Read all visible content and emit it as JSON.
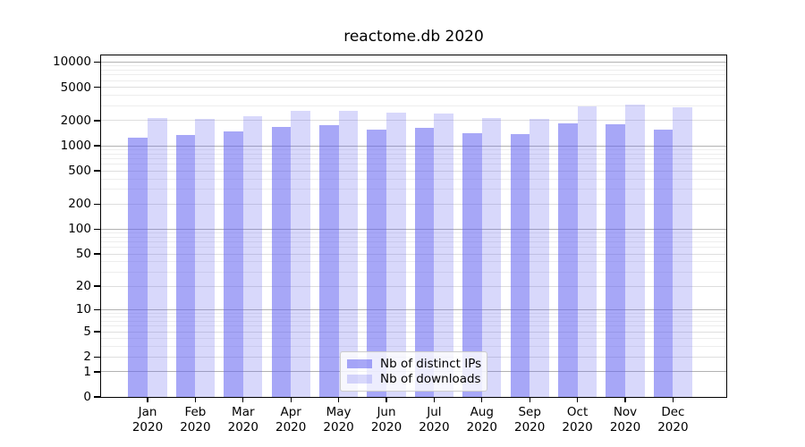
{
  "chart_data": {
    "type": "bar",
    "title": "reactome.db 2020",
    "categories": [
      "Jan 2020",
      "Feb 2020",
      "Mar 2020",
      "Apr 2020",
      "May 2020",
      "Jun 2020",
      "Jul 2020",
      "Aug 2020",
      "Sep 2020",
      "Oct 2020",
      "Nov 2020",
      "Dec 2020"
    ],
    "series": [
      {
        "name": "Nb of distinct IPs",
        "color": "rgba(98,98,240,0.56)",
        "values": [
          1250,
          1360,
          1500,
          1690,
          1750,
          1570,
          1650,
          1420,
          1390,
          1870,
          1820,
          1560
        ]
      },
      {
        "name": "Nb of downloads",
        "color": "rgba(98,98,240,0.25)",
        "values": [
          2160,
          2090,
          2240,
          2590,
          2610,
          2470,
          2440,
          2160,
          2090,
          2930,
          3100,
          2860
        ]
      }
    ],
    "y_axis": {
      "scale": "log1p",
      "max": 12000,
      "ticks": [
        0,
        1,
        2,
        5,
        10,
        20,
        50,
        100,
        200,
        500,
        1000,
        2000,
        5000,
        10000
      ],
      "major_gridlines": [
        1,
        10,
        100,
        1000,
        10000
      ],
      "mid_gridlines": [
        2,
        5,
        20,
        50,
        200,
        500,
        2000,
        5000
      ],
      "minor_gridlines": [
        3,
        4,
        6,
        7,
        8,
        9,
        30,
        40,
        60,
        70,
        80,
        90,
        300,
        400,
        600,
        700,
        800,
        900,
        3000,
        4000,
        6000,
        7000,
        8000,
        9000
      ],
      "colors": {
        "major": "#b2b2b2",
        "mid": "#dedede",
        "minor": "#ededed"
      }
    },
    "grid": "horizontal",
    "legend_position": "lower center",
    "frame_color": "#000000",
    "background": "#ffffff"
  }
}
